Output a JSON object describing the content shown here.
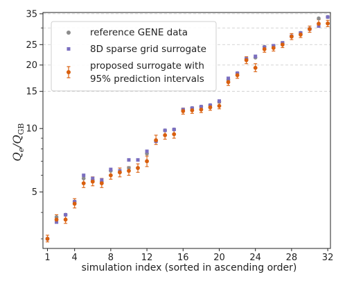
{
  "chart_data": {
    "type": "scatter",
    "xlabel": "simulation index (sorted in ascending order)",
    "ylabel_main": "Q",
    "ylabel_sub1": "e",
    "ylabel_mid": "/Q",
    "ylabel_sub2": "GB",
    "yscale": "log",
    "xlim": [
      0.5,
      32.3
    ],
    "ylim": [
      2.7,
      35.5
    ],
    "xticks": [
      1,
      4,
      8,
      12,
      16,
      20,
      24,
      28,
      32
    ],
    "xtick_labels": [
      "1",
      "4",
      "8",
      "12",
      "16",
      "20",
      "24",
      "28",
      "32"
    ],
    "yticks_labeled": [
      5,
      10,
      15,
      20,
      25,
      35
    ],
    "ytick_labels": [
      "5",
      "10",
      "15",
      "20",
      "25",
      "35"
    ],
    "yticks_minor": [
      3,
      4,
      6,
      7,
      8,
      9,
      30
    ],
    "grid_lines": [
      15,
      20,
      25,
      30,
      35
    ],
    "legend_position": "top-left",
    "colors": {
      "reference": "#8c8c8c",
      "sparse": "#7b6fc0",
      "proposed": "#d95f0e"
    },
    "legend": {
      "reference": "reference GENE data",
      "sparse": "8D sparse grid surrogate",
      "proposed_line1": "proposed surrogate with",
      "proposed_line2": "95% prediction intervals"
    },
    "series": [
      {
        "name": "reference GENE data",
        "marker": "circle",
        "values": [
          3.0,
          3.8,
          3.9,
          4.5,
          5.8,
          5.7,
          5.6,
          6.3,
          6.2,
          6.5,
          6.5,
          7.6,
          8.7,
          9.8,
          9.9,
          12.3,
          12.5,
          12.7,
          12.9,
          13.4,
          17.0,
          18.3,
          21.4,
          21.7,
          24.4,
          24.6,
          25.4,
          27.4,
          28.4,
          29.7,
          33.3,
          33.8
        ]
      },
      {
        "name": "8D sparse grid surrogate",
        "marker": "square",
        "values": [
          3.0,
          3.6,
          3.9,
          4.5,
          6.0,
          5.8,
          5.7,
          6.4,
          6.3,
          7.1,
          7.1,
          7.8,
          8.7,
          9.8,
          9.9,
          12.3,
          12.5,
          12.7,
          12.9,
          13.5,
          17.3,
          18.3,
          21.4,
          22.0,
          24.3,
          24.7,
          25.5,
          27.4,
          28.4,
          29.6,
          30.6,
          33.8
        ]
      },
      {
        "name": "proposed surrogate with 95% prediction intervals",
        "marker": "circle-errorbar",
        "values": [
          3.0,
          3.7,
          3.7,
          4.4,
          5.5,
          5.6,
          5.5,
          6.0,
          6.2,
          6.3,
          6.5,
          7.0,
          8.8,
          9.3,
          9.4,
          12.1,
          12.2,
          12.3,
          12.6,
          12.8,
          16.6,
          17.9,
          21.1,
          19.4,
          23.8,
          24.1,
          25.0,
          27.3,
          27.9,
          29.6,
          31.4,
          31.5
        ],
        "lower": [
          2.9,
          3.55,
          3.55,
          4.2,
          5.25,
          5.35,
          5.25,
          5.75,
          5.9,
          6.0,
          6.2,
          6.6,
          8.4,
          8.9,
          9.0,
          11.7,
          11.8,
          11.9,
          12.2,
          12.4,
          16.0,
          17.3,
          20.3,
          18.6,
          23.0,
          23.3,
          24.2,
          26.4,
          27.0,
          28.6,
          30.2,
          30.4
        ],
        "upper": [
          3.12,
          3.9,
          3.9,
          4.65,
          5.8,
          5.9,
          5.8,
          6.3,
          6.5,
          6.6,
          6.8,
          7.4,
          9.3,
          9.7,
          9.8,
          12.5,
          12.6,
          12.7,
          13.0,
          13.2,
          17.2,
          18.5,
          21.9,
          20.3,
          24.6,
          24.9,
          25.8,
          28.2,
          28.8,
          30.6,
          32.8,
          32.6
        ]
      }
    ]
  }
}
